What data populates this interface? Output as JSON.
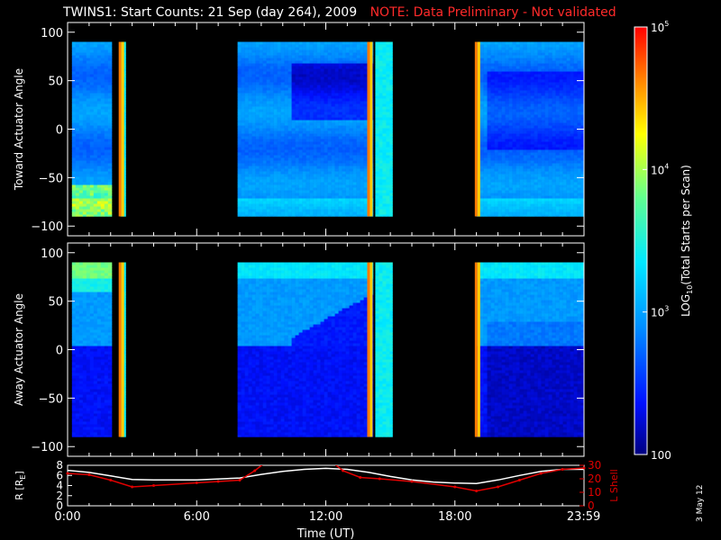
{
  "header": {
    "title": "TWINS1: Start Counts: 21 Sep (day 264), 2009",
    "note": "NOTE: Data Preliminary - Not validated"
  },
  "date_stamp": "3 May 12",
  "colors": {
    "background": "#000000",
    "note": "#ff2a2a",
    "r_line": "#ffffff",
    "l_shell_line": "#e00000",
    "axis": "#ffffff"
  },
  "chart_data": [
    {
      "type": "heatmap",
      "name": "toward-panel",
      "ylabel": "Toward Actuator Angle",
      "ylim": [
        -110,
        110
      ],
      "yticks": [
        100,
        50,
        0,
        -50,
        -100
      ],
      "xlim": [
        0,
        24
      ],
      "data_intervals_hours": [
        [
          0.2,
          2.05
        ],
        [
          2.45,
          2.7
        ],
        [
          7.9,
          14.2
        ],
        [
          14.3,
          15.1
        ],
        [
          19.0,
          24
        ]
      ],
      "angle_range": [
        -90,
        90
      ],
      "approx_log10_counts_by_region": {
        "0-2.05h": 2.9,
        "7.9-10.5h": 2.8,
        "10.5-14.2h (upper)": 2.3,
        "19-24h": 2.6
      },
      "edge_bright_times_hours": [
        2.5,
        14.05,
        19.05
      ]
    },
    {
      "type": "heatmap",
      "name": "away-panel",
      "ylabel": "Away Actuator Angle",
      "ylim": [
        -110,
        110
      ],
      "yticks": [
        100,
        50,
        0,
        -50,
        -100
      ],
      "xlim": [
        0,
        24
      ],
      "data_intervals_hours": [
        [
          0.2,
          2.05
        ],
        [
          2.45,
          2.7
        ],
        [
          7.9,
          14.2
        ],
        [
          14.3,
          15.1
        ],
        [
          19.0,
          24
        ]
      ],
      "angle_range": [
        -90,
        90
      ],
      "approx_log10_counts_by_region": {
        "upper half": 2.9,
        "lower half": 2.3,
        "19-24h": 2.6
      },
      "edge_bright_times_hours": [
        2.5,
        14.05,
        19.05
      ]
    },
    {
      "type": "line",
      "name": "orbit-panel",
      "xlabel": "Time (UT)",
      "ylabel_left": "R [R",
      "ylabel_left_sub": "E",
      "ylabel_left_close": "]",
      "ylabel_right": "L Shell",
      "xlim": [
        0,
        24
      ],
      "xticks": [
        0,
        6,
        12,
        18,
        23.983
      ],
      "xtick_labels": [
        "0:00",
        "6:00",
        "12:00",
        "18:00",
        "23:59"
      ],
      "yleft_lim": [
        0,
        8
      ],
      "yleft_ticks": [
        0,
        2,
        4,
        6,
        8
      ],
      "yright_lim": [
        0,
        30
      ],
      "yright_ticks": [
        0,
        10,
        20,
        30
      ],
      "series": [
        {
          "axis": "left",
          "color": "#ffffff",
          "x": [
            0,
            1,
            2,
            3,
            4,
            6,
            8,
            9,
            10,
            11,
            12,
            13,
            14,
            15,
            16,
            17,
            18,
            19,
            20,
            21,
            22,
            23,
            24
          ],
          "y": [
            7.0,
            6.6,
            5.9,
            5.2,
            5.1,
            5.1,
            5.5,
            6.2,
            6.8,
            7.2,
            7.4,
            7.2,
            6.6,
            5.8,
            5.1,
            4.7,
            4.5,
            4.4,
            5.1,
            6.0,
            6.8,
            7.2,
            7.2
          ]
        },
        {
          "axis": "right",
          "color": "#e00000",
          "x": [
            0,
            1,
            2,
            3,
            4,
            6,
            7,
            8,
            8.7,
            9.1,
            12.4,
            12.8,
            13.6,
            14.5,
            16,
            18,
            19,
            20,
            21,
            22,
            23,
            24
          ],
          "y": [
            24,
            23,
            19,
            14,
            15,
            17,
            18,
            19,
            26,
            31,
            31,
            26,
            21,
            20,
            18,
            14,
            11,
            14,
            19,
            24,
            27,
            28
          ]
        }
      ]
    },
    {
      "type": "heatmap",
      "name": "colorbar",
      "scale": "log",
      "range": [
        100,
        100000
      ],
      "tick_labels": [
        {
          "base": "10",
          "exp": "5",
          "value": 100000
        },
        {
          "base": "10",
          "exp": "4",
          "value": 10000
        },
        {
          "base": "10",
          "exp": "3",
          "value": 1000
        },
        {
          "base": "100",
          "exp": "",
          "value": 100
        }
      ],
      "label_prefix": "LOG",
      "label_sub": "10",
      "label_suffix": "(Total Starts per Scan)"
    }
  ]
}
